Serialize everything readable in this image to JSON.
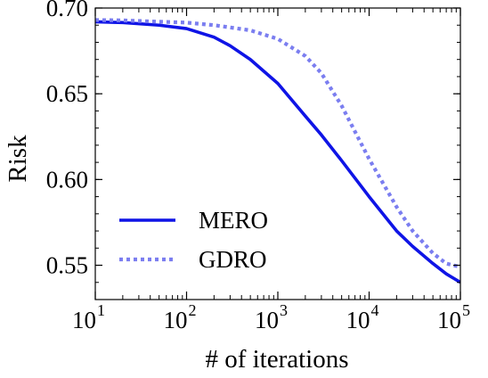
{
  "chart_data": {
    "type": "line",
    "title": "",
    "xlabel": "# of iterations",
    "ylabel": "Risk",
    "xscale": "log",
    "xlim": [
      10,
      100000
    ],
    "ylim": [
      0.53,
      0.7
    ],
    "grid": false,
    "legend_position": "bottom-left",
    "x_ticks": [
      {
        "value": 10,
        "base": "10",
        "exp": "1"
      },
      {
        "value": 100,
        "base": "10",
        "exp": "2"
      },
      {
        "value": 1000,
        "base": "10",
        "exp": "3"
      },
      {
        "value": 10000,
        "base": "10",
        "exp": "4"
      },
      {
        "value": 100000,
        "base": "10",
        "exp": "5"
      }
    ],
    "y_ticks": [
      {
        "value": 0.55,
        "label": "0.55"
      },
      {
        "value": 0.6,
        "label": "0.60"
      },
      {
        "value": 0.65,
        "label": "0.65"
      },
      {
        "value": 0.7,
        "label": "0.70"
      }
    ],
    "series": [
      {
        "name": "MERO",
        "color": "#0f14e6",
        "style": "solid",
        "x": [
          10,
          20,
          50,
          100,
          200,
          300,
          500,
          1000,
          2000,
          3000,
          5000,
          10000,
          20000,
          30000,
          50000,
          70000,
          100000
        ],
        "y": [
          0.692,
          0.6915,
          0.69,
          0.688,
          0.683,
          0.678,
          0.67,
          0.656,
          0.637,
          0.626,
          0.611,
          0.59,
          0.57,
          0.561,
          0.551,
          0.545,
          0.54
        ]
      },
      {
        "name": "GDRO",
        "color": "#7b7ef0",
        "style": "dotted",
        "x": [
          10,
          20,
          50,
          100,
          200,
          500,
          1000,
          2000,
          3000,
          5000,
          10000,
          20000,
          30000,
          50000,
          70000,
          100000
        ],
        "y": [
          0.693,
          0.6928,
          0.692,
          0.6915,
          0.69,
          0.687,
          0.682,
          0.672,
          0.662,
          0.643,
          0.612,
          0.584,
          0.57,
          0.557,
          0.551,
          0.549
        ]
      }
    ]
  }
}
